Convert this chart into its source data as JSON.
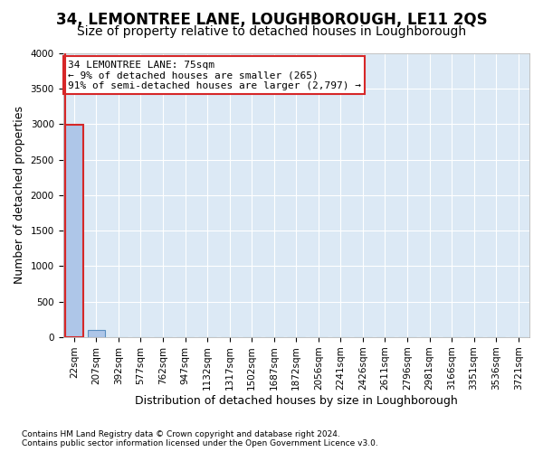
{
  "title": "34, LEMONTREE LANE, LOUGHBOROUGH, LE11 2QS",
  "subtitle": "Size of property relative to detached houses in Loughborough",
  "xlabel": "Distribution of detached houses by size in Loughborough",
  "ylabel": "Number of detached properties",
  "footer_line1": "Contains HM Land Registry data © Crown copyright and database right 2024.",
  "footer_line2": "Contains public sector information licensed under the Open Government Licence v3.0.",
  "bin_labels": [
    "22sqm",
    "207sqm",
    "392sqm",
    "577sqm",
    "762sqm",
    "947sqm",
    "1132sqm",
    "1317sqm",
    "1502sqm",
    "1687sqm",
    "1872sqm",
    "2056sqm",
    "2241sqm",
    "2426sqm",
    "2611sqm",
    "2796sqm",
    "2981sqm",
    "3166sqm",
    "3351sqm",
    "3536sqm",
    "3721sqm"
  ],
  "bar_values": [
    2990,
    100,
    0,
    0,
    0,
    0,
    0,
    0,
    0,
    0,
    0,
    0,
    0,
    0,
    0,
    0,
    0,
    0,
    0,
    0,
    0
  ],
  "bar_color": "#aec6e8",
  "bar_edge_color": "#5a8fc0",
  "highlight_bar_index": 0,
  "highlight_bar_edge_color": "#d62728",
  "vline_color": "#d62728",
  "annotation_text_line1": "34 LEMONTREE LANE: 75sqm",
  "annotation_text_line2": "← 9% of detached houses are smaller (265)",
  "annotation_text_line3": "91% of semi-detached houses are larger (2,797) →",
  "annotation_box_color": "white",
  "annotation_box_edge_color": "#d62728",
  "ylim": [
    0,
    4000
  ],
  "yticks": [
    0,
    500,
    1000,
    1500,
    2000,
    2500,
    3000,
    3500,
    4000
  ],
  "background_color": "#dce9f5",
  "grid_color": "white",
  "title_fontsize": 12,
  "subtitle_fontsize": 10,
  "axis_label_fontsize": 9,
  "tick_fontsize": 7.5
}
